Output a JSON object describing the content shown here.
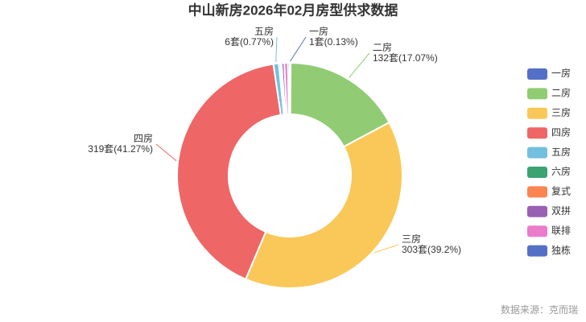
{
  "chart_data": {
    "type": "donut",
    "title": "中山新房2026年02月房型供求数据",
    "categories": [
      "一房",
      "二房",
      "三房",
      "四房",
      "五房",
      "六房",
      "复式",
      "双拼",
      "联排",
      "独栋"
    ],
    "values": [
      1,
      132,
      303,
      319,
      6,
      2,
      1,
      3,
      4,
      2
    ],
    "value_labels": [
      "1套(0.13%)",
      "132套(17.07%)",
      "303套(39.2%)",
      "319套(41.27%)",
      "6套(0.77%)",
      null,
      null,
      null,
      null,
      null
    ],
    "colors": [
      "#5470c6",
      "#91cc75",
      "#fac858",
      "#ee6666",
      "#73c0de",
      "#3ba272",
      "#fc8452",
      "#9a60b4",
      "#ea7ccc",
      "#5470c6"
    ],
    "legend": "right",
    "source": "数据来源：克而瑞"
  }
}
